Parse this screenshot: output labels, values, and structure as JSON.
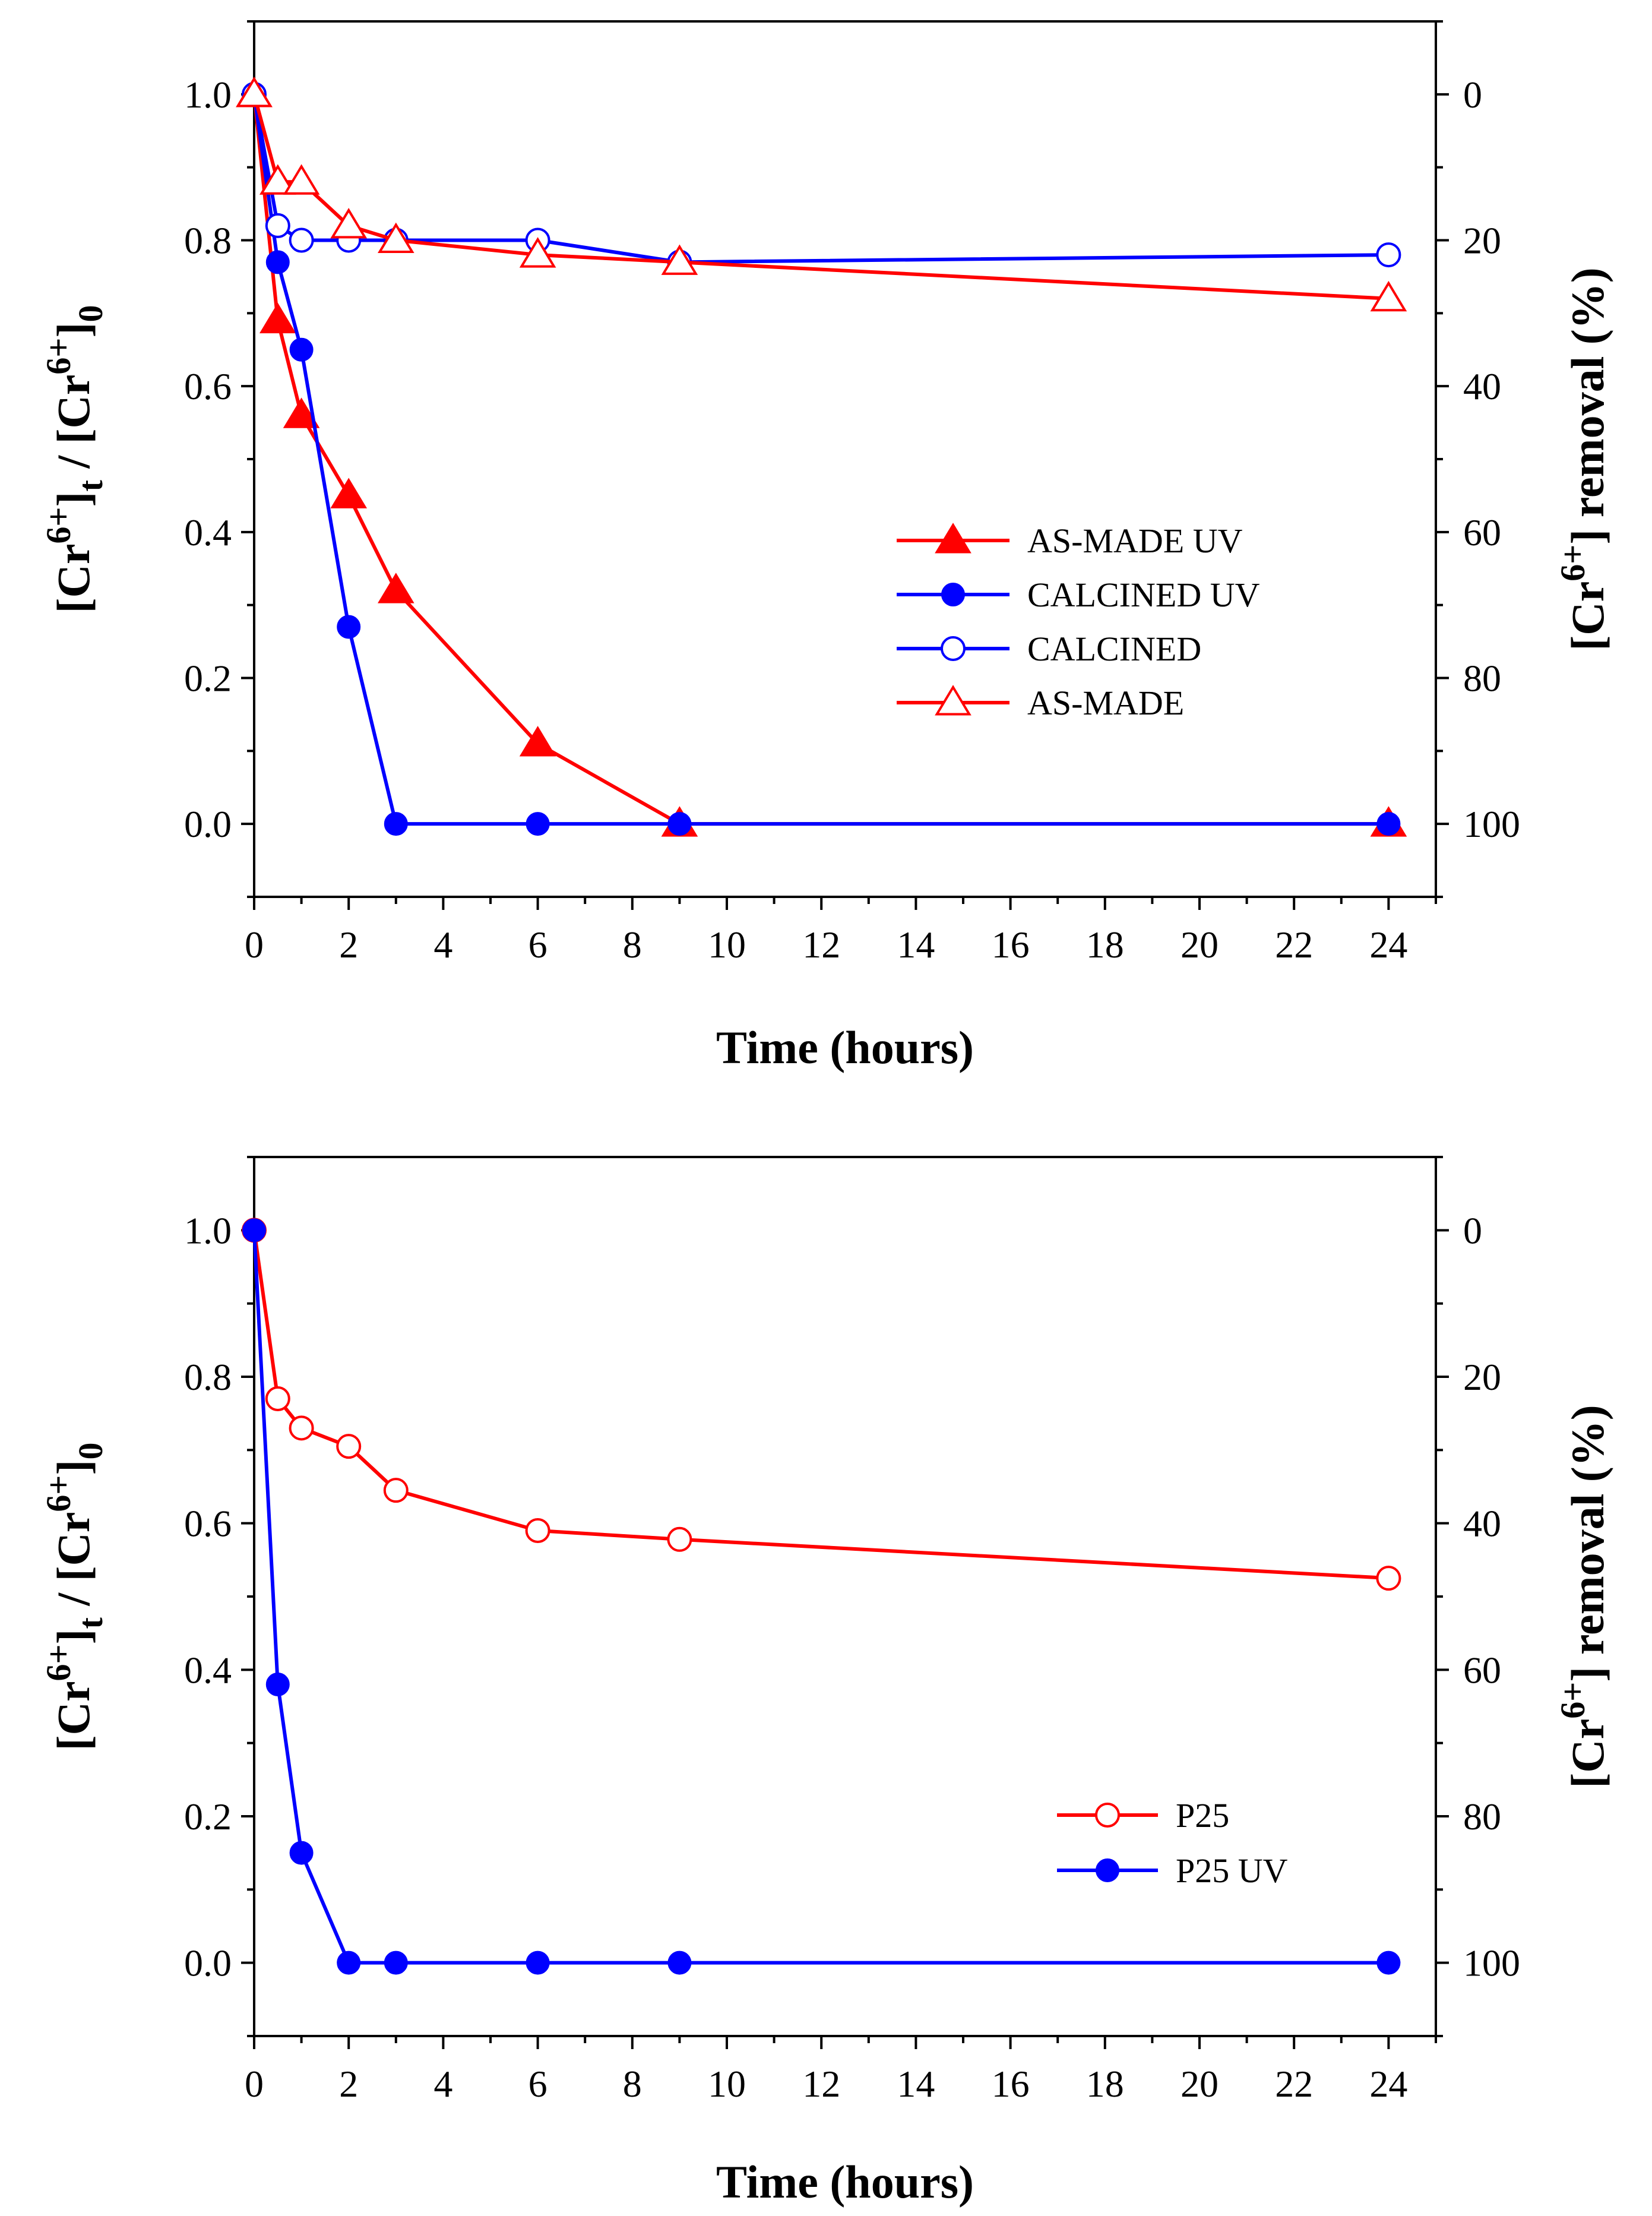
{
  "chart_data": [
    {
      "type": "line",
      "xlabel": "Time (hours)",
      "ylabel_left": {
        "pre": "[Cr",
        "sup1": "6+",
        "mid": "]",
        "sub1": "t",
        "mid2": " / [Cr",
        "sup2": "6+",
        "end": "]",
        "sub2": "0"
      },
      "ylabel_right": {
        "pre": "[Cr",
        "sup": "6+",
        "end": "] removal (%)"
      },
      "xlim": [
        0,
        25
      ],
      "ylim": [
        -0.1,
        1.1
      ],
      "ylim_right": [
        110,
        -10
      ],
      "xticks": [
        0,
        2,
        4,
        6,
        8,
        10,
        12,
        14,
        16,
        18,
        20,
        22,
        24
      ],
      "xtick_labels": [
        "0",
        "2",
        "4",
        "6",
        "8",
        "10",
        "12",
        "14",
        "16",
        "18",
        "20",
        "22",
        "24"
      ],
      "yticks": [
        0.0,
        0.2,
        0.4,
        0.6,
        0.8,
        1.0
      ],
      "ytick_labels": [
        "0.0",
        "0.2",
        "0.4",
        "0.6",
        "0.8",
        "1.0"
      ],
      "yticks_right": [
        0,
        20,
        40,
        60,
        80,
        100
      ],
      "ytick_right_labels": [
        "0",
        "20",
        "40",
        "60",
        "80",
        "100"
      ],
      "legend_position": "center-right",
      "series": [
        {
          "name": "AS-MADE UV",
          "color": "#ff0000",
          "marker": "triangle",
          "filled": true,
          "x": [
            0,
            0.5,
            1,
            2,
            3,
            6,
            9,
            24
          ],
          "values": [
            1.0,
            0.69,
            0.56,
            0.45,
            0.32,
            0.11,
            0.0,
            0.0
          ]
        },
        {
          "name": "CALCINED UV",
          "color": "#0000ff",
          "marker": "circle",
          "filled": true,
          "x": [
            0,
            0.5,
            1,
            2,
            3,
            6,
            9,
            24
          ],
          "values": [
            1.0,
            0.77,
            0.65,
            0.27,
            0.0,
            0.0,
            0.0,
            0.0
          ]
        },
        {
          "name": "CALCINED",
          "color": "#0000ff",
          "marker": "circle",
          "filled": false,
          "x": [
            0,
            0.5,
            1,
            2,
            3,
            6,
            9,
            24
          ],
          "values": [
            1.0,
            0.82,
            0.8,
            0.8,
            0.8,
            0.8,
            0.77,
            0.78
          ]
        },
        {
          "name": "AS-MADE",
          "color": "#ff0000",
          "marker": "triangle",
          "filled": false,
          "x": [
            0,
            0.5,
            1,
            2,
            3,
            6,
            9,
            24
          ],
          "values": [
            1.0,
            0.88,
            0.88,
            0.82,
            0.8,
            0.78,
            0.77,
            0.72
          ]
        }
      ]
    },
    {
      "type": "line",
      "xlabel": "Time (hours)",
      "ylabel_left": {
        "pre": "[Cr",
        "sup1": "6+",
        "mid": "]",
        "sub1": "t",
        "mid2": " / [Cr",
        "sup2": "6+",
        "end": "]",
        "sub2": "0"
      },
      "ylabel_right": {
        "pre": "[Cr",
        "sup": "6+",
        "end": "] removal (%)"
      },
      "xlim": [
        0,
        25
      ],
      "ylim": [
        -0.1,
        1.1
      ],
      "ylim_right": [
        110,
        -10
      ],
      "xticks": [
        0,
        2,
        4,
        6,
        8,
        10,
        12,
        14,
        16,
        18,
        20,
        22,
        24
      ],
      "xtick_labels": [
        "0",
        "2",
        "4",
        "6",
        "8",
        "10",
        "12",
        "14",
        "16",
        "18",
        "20",
        "22",
        "24"
      ],
      "yticks": [
        0.0,
        0.2,
        0.4,
        0.6,
        0.8,
        1.0
      ],
      "ytick_labels": [
        "0.0",
        "0.2",
        "0.4",
        "0.6",
        "0.8",
        "1.0"
      ],
      "yticks_right": [
        0,
        20,
        40,
        60,
        80,
        100
      ],
      "ytick_right_labels": [
        "0",
        "20",
        "40",
        "60",
        "80",
        "100"
      ],
      "legend_position": "bottom-right",
      "series": [
        {
          "name": "P25",
          "color": "#ff0000",
          "marker": "circle",
          "filled": false,
          "x": [
            0,
            0.5,
            1,
            2,
            3,
            6,
            9,
            24
          ],
          "values": [
            1.0,
            0.77,
            0.73,
            0.705,
            0.645,
            0.59,
            0.578,
            0.525
          ]
        },
        {
          "name": "P25 UV",
          "color": "#0000ff",
          "marker": "circle",
          "filled": true,
          "x": [
            0,
            0.5,
            1,
            2,
            3,
            6,
            9,
            24
          ],
          "values": [
            1.0,
            0.38,
            0.15,
            0.0,
            0.0,
            0.0,
            0.0,
            0.0
          ]
        }
      ]
    }
  ]
}
